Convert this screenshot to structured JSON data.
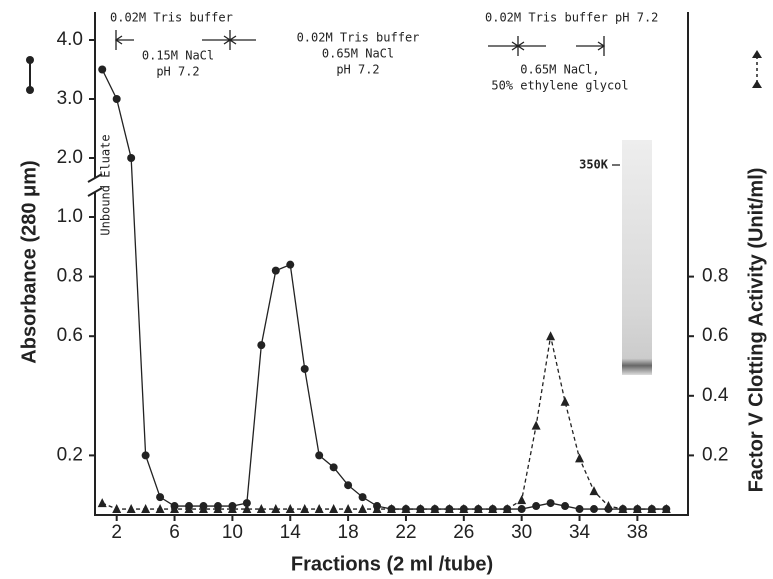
{
  "chart_data": {
    "type": "line",
    "xlabel": "Fractions (2 ml /tube)",
    "ylabel": "Absorbance (280 μm)",
    "y2label": "Factor V Clotting Activity (Unit/ml)",
    "annotations": [
      "0.02M Tris buffer",
      "0.15M NaCl",
      "pH 7.2",
      "0.02M Tris buffer",
      "0.65M NaCl",
      "pH 7.2",
      "0.02M Tris buffer pH 7.2",
      "0.65M NaCl,",
      "50% ethylene glycol",
      "Unbound Eluate",
      "350K"
    ],
    "x": [
      1,
      2,
      3,
      4,
      5,
      6,
      7,
      8,
      9,
      10,
      11,
      12,
      13,
      14,
      15,
      16,
      17,
      18,
      19,
      20,
      21,
      22,
      23,
      24,
      25,
      26,
      27,
      28,
      29,
      30,
      31,
      32,
      33,
      34,
      35,
      36,
      37,
      38,
      39,
      40
    ],
    "series": [
      {
        "color": "#222222",
        "marker": "circle",
        "dash": false,
        "values": [
          3.5,
          3.0,
          2.0,
          0.2,
          0.06,
          0.03,
          0.03,
          0.03,
          0.03,
          0.03,
          0.04,
          0.57,
          0.82,
          0.84,
          0.49,
          0.2,
          0.16,
          0.1,
          0.06,
          0.03,
          0.02,
          0.02,
          0.02,
          0.02,
          0.02,
          0.02,
          0.02,
          0.02,
          0.02,
          0.02,
          0.03,
          0.04,
          0.03,
          0.02,
          0.02,
          0.02,
          0.02,
          0.02,
          0.02,
          0.02
        ]
      },
      {
        "color": "#222222",
        "marker": "triangle",
        "dash": true,
        "axis": "y2",
        "values": [
          0.04,
          0.02,
          0.02,
          0.02,
          0.02,
          0.02,
          0.02,
          0.02,
          0.02,
          0.02,
          0.02,
          0.02,
          0.02,
          0.02,
          0.02,
          0.02,
          0.02,
          0.02,
          0.02,
          0.02,
          0.02,
          0.02,
          0.02,
          0.02,
          0.02,
          0.02,
          0.02,
          0.02,
          0.02,
          0.05,
          0.3,
          0.6,
          0.38,
          0.19,
          0.08,
          0.03,
          0.02,
          0.02,
          0.02,
          0.02
        ]
      }
    ],
    "xlim": [
      0.5,
      41.5
    ],
    "xticks": [
      2,
      6,
      10,
      14,
      18,
      22,
      26,
      30,
      34,
      38
    ],
    "ylim": [
      0,
      4
    ],
    "ybreak": 1,
    "yticks": [
      0.2,
      0.6,
      0.8,
      {
        "value": 1,
        "label": "1.0"
      },
      {
        "value": 2,
        "label": "2.0"
      },
      {
        "value": 3,
        "label": "3.0"
      },
      {
        "value": 4,
        "label": "4.0"
      }
    ],
    "y2lim": [
      0,
      1
    ],
    "y2ticks": [
      0.2,
      0.4,
      0.6,
      0.8
    ]
  }
}
